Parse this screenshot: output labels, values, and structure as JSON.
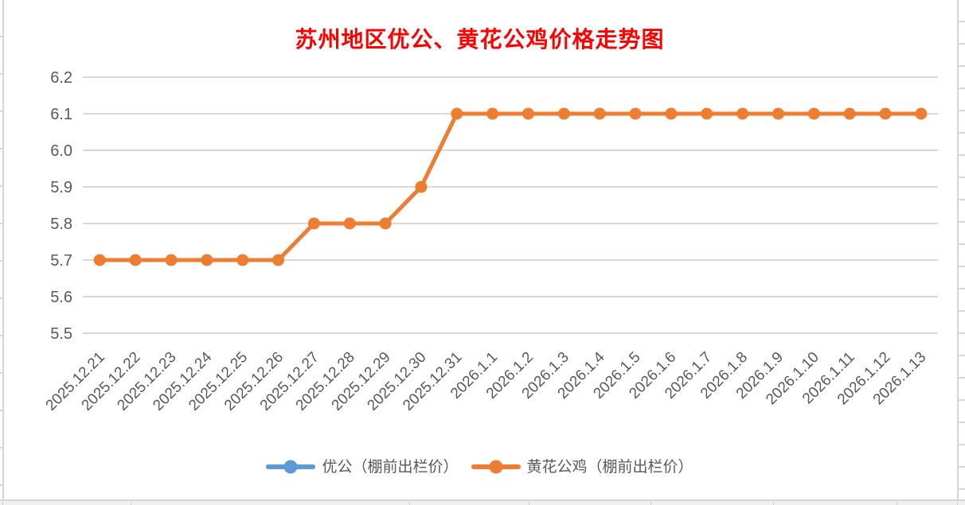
{
  "chart_data": {
    "type": "line",
    "title": "苏州地区优公、黄花公鸡价格走势图",
    "title_color": "#FF0000",
    "categories": [
      "2025.12.21",
      "2025.12.22",
      "2025.12.23",
      "2025.12.24",
      "2025.12.25",
      "2025.12.26",
      "2025.12.27",
      "2025.12.28",
      "2025.12.29",
      "2025.12.30",
      "2025.12.31",
      "2026.1.1",
      "2026.1.2",
      "2026.1.3",
      "2026.1.4",
      "2026.1.5",
      "2026.1.6",
      "2026.1.7",
      "2026.1.8",
      "2026.1.9",
      "2026.1.10",
      "2026.1.11",
      "2026.1.12",
      "2026.1.13"
    ],
    "series": [
      {
        "name": "优公（棚前出栏价）",
        "color": "#5B9BD5",
        "values": null,
        "visible_in_plot": false,
        "note": "line not visible in plot area (hidden behind 黄花公鸡 series); shown only in legend"
      },
      {
        "name": "黄花公鸡（棚前出栏价）",
        "color": "#ED7D31",
        "values": [
          5.7,
          5.7,
          5.7,
          5.7,
          5.7,
          5.7,
          5.8,
          5.8,
          5.8,
          5.9,
          6.1,
          6.1,
          6.1,
          6.1,
          6.1,
          6.1,
          6.1,
          6.1,
          6.1,
          6.1,
          6.1,
          6.1,
          6.1,
          6.1
        ],
        "visible_in_plot": true
      }
    ],
    "y_axis": {
      "min": 5.5,
      "max": 6.2,
      "step": 0.1,
      "tick_labels": [
        "5.5",
        "5.6",
        "5.7",
        "5.8",
        "5.9",
        "6.0",
        "6.1",
        "6.2"
      ],
      "label_color": "#595959"
    },
    "x_axis": {
      "label_rotation_deg": -45,
      "label_color": "#595959"
    },
    "grid": true,
    "gridline_color": "#D9D9D9",
    "legend": {
      "position": "bottom",
      "entries": [
        "优公（棚前出栏价）",
        "黄花公鸡（棚前出栏价）"
      ]
    }
  }
}
